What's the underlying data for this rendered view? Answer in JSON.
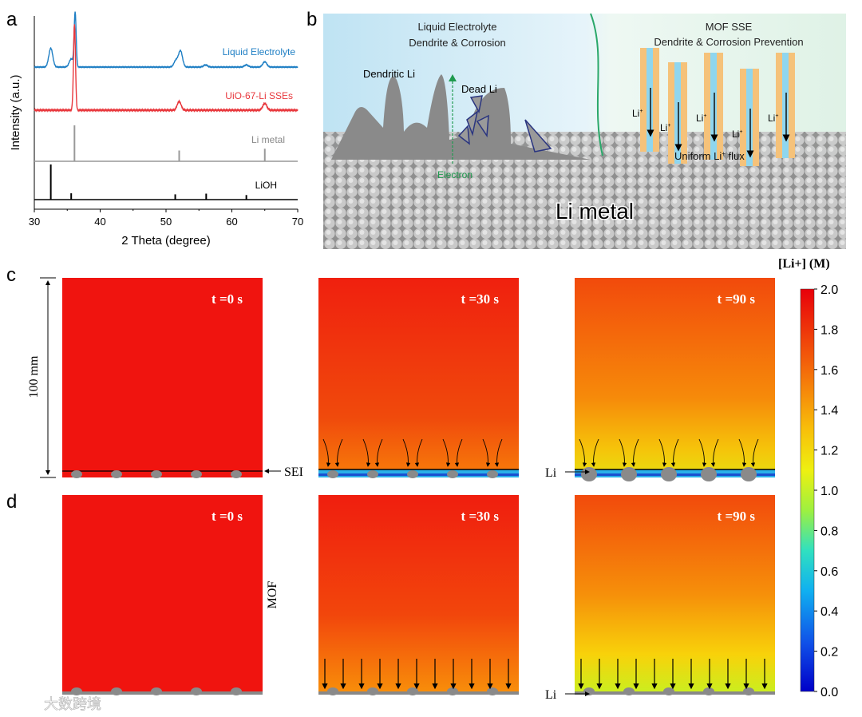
{
  "panel_labels": {
    "a": "a",
    "b": "b",
    "c": "c",
    "d": "d"
  },
  "chart_data": {
    "type": "line",
    "title": "",
    "xlabel": "2 Theta (degree)",
    "ylabel": "Intensity (a.u.)",
    "xlim": [
      30,
      70
    ],
    "xticks": [
      "30",
      "40",
      "50",
      "60",
      "70"
    ],
    "series": [
      {
        "name": "Liquid Electrolyte",
        "color": "#1f7fc4",
        "peaks": [
          [
            32.5,
            0.35
          ],
          [
            35.6,
            0.15
          ],
          [
            36.2,
            1.0
          ],
          [
            51.5,
            0.12
          ],
          [
            52.2,
            0.3
          ],
          [
            56,
            0.04
          ],
          [
            62.2,
            0.04
          ],
          [
            65,
            0.1
          ]
        ]
      },
      {
        "name": "UiO-67-Li SSEs",
        "color": "#e8383d",
        "peaks": [
          [
            36.1,
            1.0
          ],
          [
            52.0,
            0.1
          ],
          [
            65.0,
            0.08
          ]
        ]
      },
      {
        "name": "Li metal",
        "color": "#999999",
        "sticks": [
          [
            36.1,
            1.0
          ],
          [
            52.0,
            0.3
          ],
          [
            65.0,
            0.35
          ]
        ]
      },
      {
        "name": "LiOH",
        "color": "#000000",
        "sticks": [
          [
            32.5,
            1.0
          ],
          [
            35.6,
            0.18
          ],
          [
            51.4,
            0.15
          ],
          [
            56.1,
            0.17
          ],
          [
            62.2,
            0.13
          ]
        ]
      }
    ]
  },
  "schematic": {
    "left_title_1": "Liquid Electrolyte",
    "left_title_2": "Dendrite & Corrosion",
    "right_title_1": "MOF SSE",
    "right_title_2": "Dendrite & Corrosion Prevention",
    "dendritic": "Dendritic Li",
    "dead": "Dead Li",
    "electron": "Electron",
    "li_ion": "Li",
    "plus": "+",
    "flux": "Uniform Li",
    "flux_tail": " flux",
    "metal": "Li metal"
  },
  "simulation": {
    "times": [
      "t =0 s",
      "t =30 s",
      "t =90 s"
    ],
    "scale_label": "100 mm",
    "sei_label": "SEI",
    "mof_label": "MOF",
    "li_label": "Li",
    "colorbar_title": "[Li+] (M)",
    "colorbar_ticks": [
      "2.0",
      "1.8",
      "1.6",
      "1.4",
      "1.2",
      "1.0",
      "0.8",
      "0.6",
      "0.4",
      "0.2",
      "0.0"
    ]
  },
  "watermark": "大数跨境"
}
